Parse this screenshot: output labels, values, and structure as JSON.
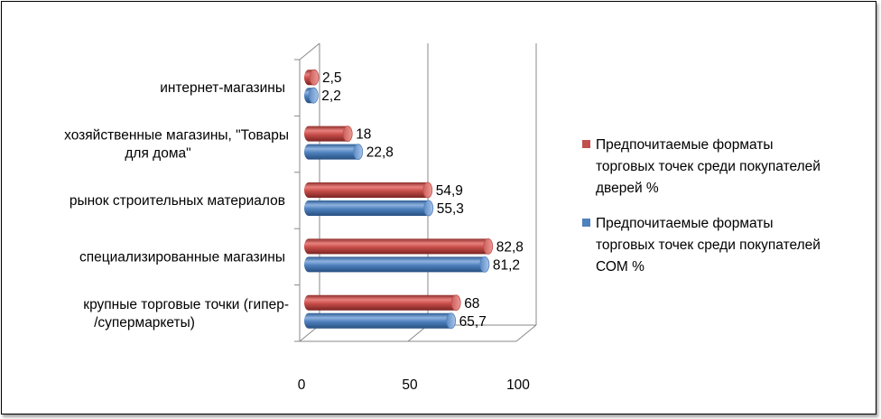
{
  "chart_data": {
    "type": "bar",
    "orientation": "horizontal",
    "categories": [
      "интернет-магазины",
      "хозяйственные магазины, \"Товары для дома\"",
      "рынок строительных материалов",
      "специализированные магазины",
      "крупные торговые точки (гипер-/супермаркеты)"
    ],
    "category_label_lines": [
      [
        "интернет-магазины"
      ],
      [
        "хозяйственные магазины, \"Товары",
        "для дома\""
      ],
      [
        "рынок строительных материалов"
      ],
      [
        "специализированные магазины"
      ],
      [
        "крупные торговые точки (гипер-",
        "/супермаркеты)"
      ]
    ],
    "series": [
      {
        "name": "Предпочитаемые форматы торговых точек среди покупателей дверей %",
        "name_lines": [
          "Предпочитаемые форматы",
          "торговых точек среди покупателей",
          "дверей %"
        ],
        "color": "#C0504D",
        "values": [
          2.5,
          18,
          54.9,
          82.8,
          68
        ],
        "labels": [
          "2,5",
          "18",
          "54,9",
          "82,8",
          "68"
        ]
      },
      {
        "name": "Предпочитаемые форматы торговых точек среди покупателей СОМ %",
        "name_lines": [
          "Предпочитаемые форматы",
          "торговых точек среди покупателей",
          "СОМ %"
        ],
        "color": "#4F81BD",
        "values": [
          2.2,
          22.8,
          55.3,
          81.2,
          65.7
        ],
        "labels": [
          "2,2",
          "22,8",
          "55,3",
          "81,2",
          "65,7"
        ]
      }
    ],
    "x_ticks": [
      "0",
      "50",
      "100"
    ],
    "xlim": [
      0,
      100
    ],
    "grid": true,
    "style": "3d-cylinder",
    "legend_position": "right"
  }
}
